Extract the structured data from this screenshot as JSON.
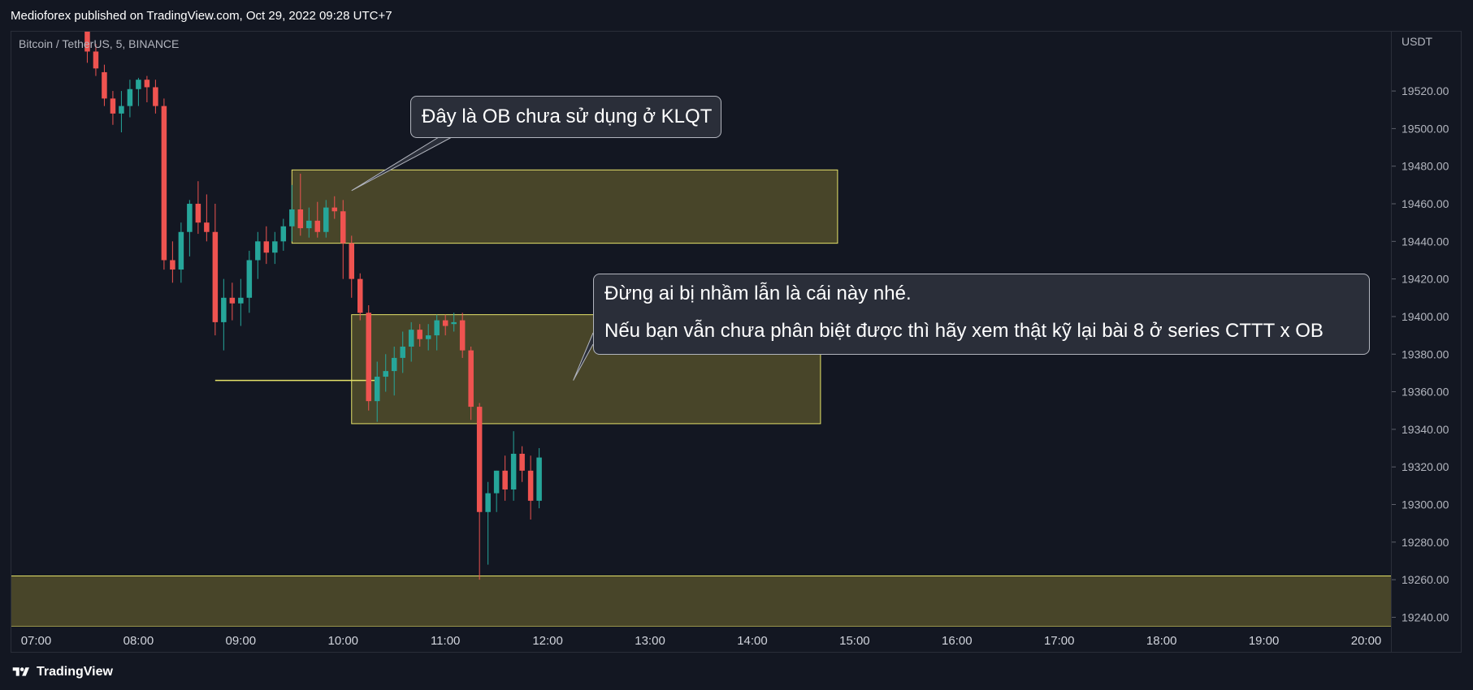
{
  "header": {
    "publisher": "Medioforex published on TradingView.com, Oct 29, 2022 09:28 UTC+7"
  },
  "symbol_label": "Bitcoin / TetherUS, 5, BINANCE",
  "currency_label": "USDT",
  "brand": {
    "name": "TradingView",
    "logo": "tradingview-logo-icon"
  },
  "colors": {
    "background": "#131722",
    "up": "#26a69a",
    "down": "#ef5350",
    "zone_fill": "#4d4a2a",
    "zone_border": "#e6e36a",
    "callout_bg": "#2a2e39"
  },
  "annotations": {
    "callout_1": "Đây là OB chưa sử dụng ở KLQT",
    "callout_2_line1": "Đừng ai bị nhầm lẫn là cái này nhé.",
    "callout_2_line2": "Nếu bạn vẫn chưa phân biệt được thì hãy xem thật kỹ lại bài 8 ở series CTTT x OB"
  },
  "chart_data": {
    "type": "candlestick",
    "interval_minutes": 5,
    "x_ticks": [
      "07:00",
      "08:00",
      "09:00",
      "10:00",
      "11:00",
      "12:00",
      "13:00",
      "14:00",
      "15:00",
      "16:00",
      "17:00",
      "18:00",
      "19:00",
      "20:00"
    ],
    "y_ticks": [
      19520,
      19500,
      19480,
      19460,
      19440,
      19420,
      19400,
      19380,
      19360,
      19340,
      19320,
      19300,
      19280,
      19260,
      19240
    ],
    "y_tick_labels": [
      "19520.00",
      "19500.00",
      "19480.00",
      "19460.00",
      "19440.00",
      "19420.00",
      "19400.00",
      "19380.00",
      "19360.00",
      "19340.00",
      "19320.00",
      "19300.00",
      "19280.00",
      "19260.00",
      "19240.00"
    ],
    "ylim": [
      19235,
      19552
    ],
    "xlim": [
      "06:45",
      "20:15"
    ],
    "candles": [
      {
        "t": "07:30",
        "o": 19555,
        "h": 19562,
        "l": 19535,
        "c": 19541
      },
      {
        "t": "07:35",
        "o": 19541,
        "h": 19545,
        "l": 19528,
        "c": 19532
      },
      {
        "t": "07:40",
        "o": 19530,
        "h": 19534,
        "l": 19512,
        "c": 19516
      },
      {
        "t": "07:45",
        "o": 19516,
        "h": 19520,
        "l": 19502,
        "c": 19508
      },
      {
        "t": "07:50",
        "o": 19508,
        "h": 19520,
        "l": 19498,
        "c": 19512
      },
      {
        "t": "07:55",
        "o": 19512,
        "h": 19526,
        "l": 19506,
        "c": 19521
      },
      {
        "t": "08:00",
        "o": 19521,
        "h": 19527,
        "l": 19512,
        "c": 19526
      },
      {
        "t": "08:05",
        "o": 19526,
        "h": 19528,
        "l": 19514,
        "c": 19522
      },
      {
        "t": "08:10",
        "o": 19522,
        "h": 19526,
        "l": 19508,
        "c": 19512
      },
      {
        "t": "08:15",
        "o": 19512,
        "h": 19516,
        "l": 19425,
        "c": 19430
      },
      {
        "t": "08:20",
        "o": 19430,
        "h": 19440,
        "l": 19418,
        "c": 19425
      },
      {
        "t": "08:25",
        "o": 19425,
        "h": 19450,
        "l": 19418,
        "c": 19445
      },
      {
        "t": "08:30",
        "o": 19445,
        "h": 19462,
        "l": 19432,
        "c": 19460
      },
      {
        "t": "08:35",
        "o": 19460,
        "h": 19472,
        "l": 19444,
        "c": 19450
      },
      {
        "t": "08:40",
        "o": 19450,
        "h": 19465,
        "l": 19440,
        "c": 19445
      },
      {
        "t": "08:45",
        "o": 19445,
        "h": 19460,
        "l": 19390,
        "c": 19397
      },
      {
        "t": "08:50",
        "o": 19397,
        "h": 19420,
        "l": 19382,
        "c": 19410
      },
      {
        "t": "08:55",
        "o": 19410,
        "h": 19418,
        "l": 19398,
        "c": 19407
      },
      {
        "t": "09:00",
        "o": 19407,
        "h": 19420,
        "l": 19395,
        "c": 19410
      },
      {
        "t": "09:05",
        "o": 19410,
        "h": 19435,
        "l": 19402,
        "c": 19430
      },
      {
        "t": "09:10",
        "o": 19430,
        "h": 19445,
        "l": 19420,
        "c": 19440
      },
      {
        "t": "09:15",
        "o": 19440,
        "h": 19448,
        "l": 19428,
        "c": 19434
      },
      {
        "t": "09:20",
        "o": 19434,
        "h": 19445,
        "l": 19428,
        "c": 19440
      },
      {
        "t": "09:25",
        "o": 19440,
        "h": 19452,
        "l": 19435,
        "c": 19448
      },
      {
        "t": "09:30",
        "o": 19448,
        "h": 19470,
        "l": 19440,
        "c": 19457
      },
      {
        "t": "09:35",
        "o": 19457,
        "h": 19476,
        "l": 19443,
        "c": 19447
      },
      {
        "t": "09:40",
        "o": 19447,
        "h": 19458,
        "l": 19442,
        "c": 19451
      },
      {
        "t": "09:45",
        "o": 19451,
        "h": 19461,
        "l": 19442,
        "c": 19445
      },
      {
        "t": "09:50",
        "o": 19445,
        "h": 19462,
        "l": 19442,
        "c": 19458
      },
      {
        "t": "09:55",
        "o": 19458,
        "h": 19464,
        "l": 19452,
        "c": 19456
      },
      {
        "t": "10:00",
        "o": 19456,
        "h": 19462,
        "l": 19420,
        "c": 19439
      },
      {
        "t": "10:05",
        "o": 19439,
        "h": 19443,
        "l": 19410,
        "c": 19420
      },
      {
        "t": "10:10",
        "o": 19420,
        "h": 19423,
        "l": 19398,
        "c": 19402
      },
      {
        "t": "10:15",
        "o": 19402,
        "h": 19406,
        "l": 19350,
        "c": 19355
      },
      {
        "t": "10:20",
        "o": 19355,
        "h": 19376,
        "l": 19344,
        "c": 19368
      },
      {
        "t": "10:25",
        "o": 19368,
        "h": 19380,
        "l": 19360,
        "c": 19371
      },
      {
        "t": "10:30",
        "o": 19371,
        "h": 19384,
        "l": 19358,
        "c": 19378
      },
      {
        "t": "10:35",
        "o": 19378,
        "h": 19392,
        "l": 19370,
        "c": 19384
      },
      {
        "t": "10:40",
        "o": 19384,
        "h": 19397,
        "l": 19376,
        "c": 19393
      },
      {
        "t": "10:45",
        "o": 19393,
        "h": 19396,
        "l": 19384,
        "c": 19388
      },
      {
        "t": "10:50",
        "o": 19388,
        "h": 19396,
        "l": 19382,
        "c": 19390
      },
      {
        "t": "10:55",
        "o": 19390,
        "h": 19401,
        "l": 19382,
        "c": 19398
      },
      {
        "t": "11:00",
        "o": 19398,
        "h": 19401,
        "l": 19390,
        "c": 19395
      },
      {
        "t": "11:05",
        "o": 19396,
        "h": 19402,
        "l": 19392,
        "c": 19397
      },
      {
        "t": "11:10",
        "o": 19398,
        "h": 19402,
        "l": 19378,
        "c": 19382
      },
      {
        "t": "11:15",
        "o": 19382,
        "h": 19384,
        "l": 19345,
        "c": 19352
      },
      {
        "t": "11:20",
        "o": 19352,
        "h": 19354,
        "l": 19260,
        "c": 19296
      },
      {
        "t": "11:25",
        "o": 19296,
        "h": 19312,
        "l": 19268,
        "c": 19306
      },
      {
        "t": "11:30",
        "o": 19306,
        "h": 19318,
        "l": 19296,
        "c": 19318
      },
      {
        "t": "11:35",
        "o": 19318,
        "h": 19326,
        "l": 19302,
        "c": 19308
      },
      {
        "t": "11:40",
        "o": 19308,
        "h": 19339,
        "l": 19302,
        "c": 19327
      },
      {
        "t": "11:45",
        "o": 19327,
        "h": 19331,
        "l": 19312,
        "c": 19318
      },
      {
        "t": "11:50",
        "o": 19318,
        "h": 19326,
        "l": 19292,
        "c": 19302
      },
      {
        "t": "11:55",
        "o": 19302,
        "h": 19330,
        "l": 19298,
        "c": 19325
      }
    ],
    "zones": [
      {
        "name": "upper-ob-zone",
        "from": "09:30",
        "to": "14:50",
        "top": 19478,
        "bottom": 19439
      },
      {
        "name": "middle-ob-zone",
        "from": "10:05",
        "to": "14:40",
        "top": 19401,
        "bottom": 19343
      },
      {
        "name": "bottom-zone",
        "from": "06:45",
        "to": "20:15",
        "top": 19262,
        "bottom": 19235
      }
    ],
    "hlines": [
      {
        "name": "swing-low-line",
        "price": 19366,
        "from": "08:45",
        "to": "10:20"
      }
    ],
    "callouts": [
      {
        "name": "callout-1-pointer",
        "anchor_time": "10:05",
        "anchor_price": 19467
      },
      {
        "name": "callout-2-pointer",
        "anchor_time": "12:15",
        "anchor_price": 19366
      }
    ]
  }
}
